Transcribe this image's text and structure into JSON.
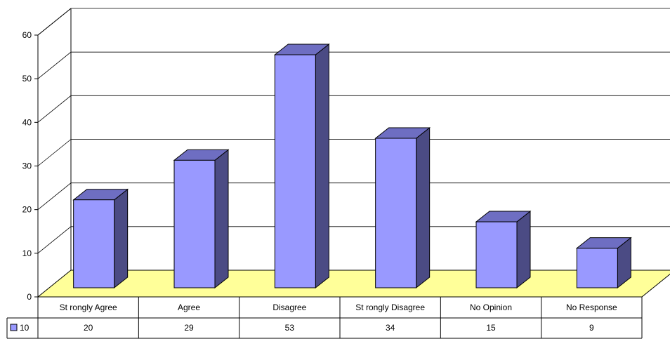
{
  "chart_data": {
    "type": "bar",
    "title": "",
    "xlabel": "",
    "ylabel": "",
    "ylim": [
      0,
      60
    ],
    "yticks": [
      0,
      10,
      20,
      30,
      40,
      50,
      60
    ],
    "grid": true,
    "legend": "data table, left",
    "categories": [
      "St rongly Agree",
      "Agree",
      "Disagree",
      "St rongly Disagree",
      "No Opinion",
      "No Response"
    ],
    "series": [
      {
        "name": "10",
        "values": [
          20,
          29,
          53,
          34,
          15,
          9
        ]
      }
    ],
    "colors": {
      "bar_front": "#9999ff",
      "bar_side": "#4b4b84",
      "bar_top": "#6e6ec2",
      "floor": "#ffff99",
      "wall": "#ffffff",
      "grid": "#000000"
    }
  }
}
